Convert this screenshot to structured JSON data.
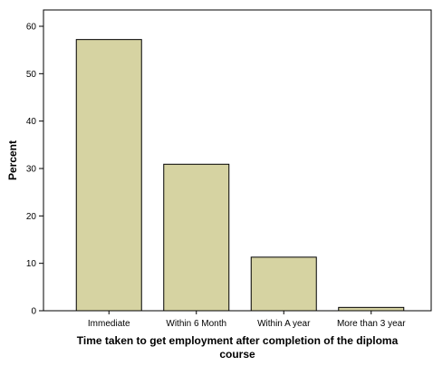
{
  "chart_data": {
    "type": "bar",
    "categories": [
      "Immediate",
      "Within 6 Month",
      "Within A year",
      "More than 3 year"
    ],
    "values": [
      57.2,
      30.9,
      11.3,
      0.7
    ],
    "xlabel_lines": [
      "Time taken to get employment after completion of the diploma",
      "course"
    ],
    "ylabel": "Percent",
    "ylim": [
      0,
      60
    ],
    "yticks": [
      0,
      10,
      20,
      30,
      40,
      50,
      60
    ],
    "grid": false,
    "bar_color": "#d6d3a2",
    "bar_edge_color": "#000000"
  }
}
